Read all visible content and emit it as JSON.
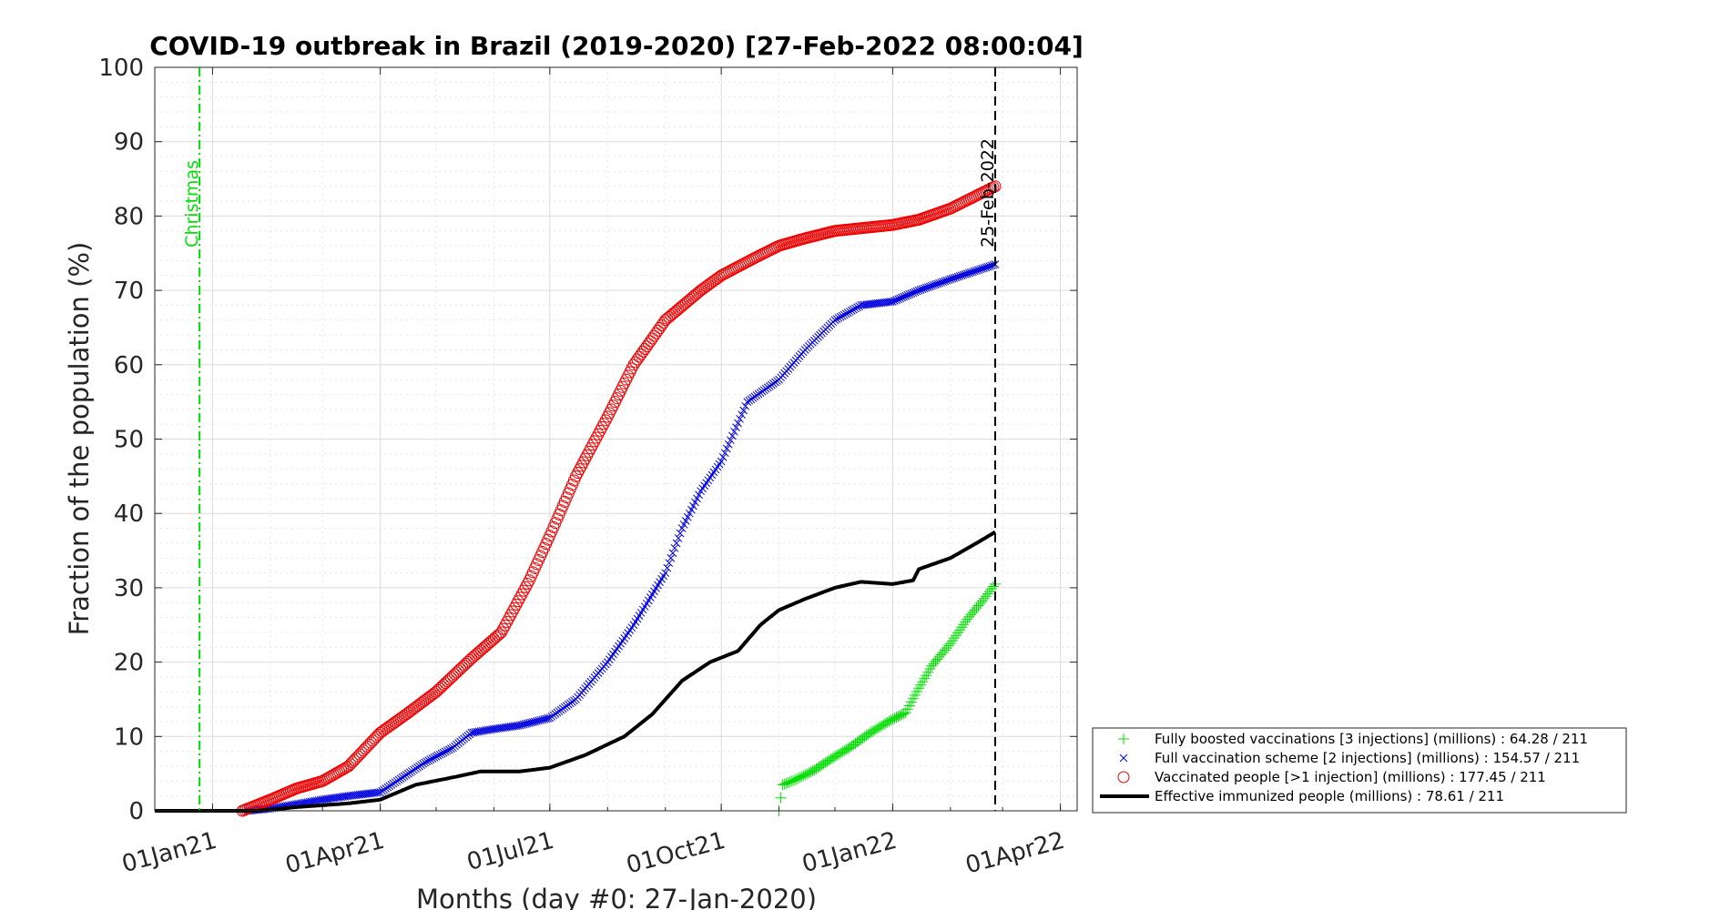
{
  "chart_data": {
    "type": "line",
    "title": "COVID-19 outbreak in Brazil (2019-2020) [27-Feb-2022 08:00:04]",
    "xlabel": "Months (day #0: 27-Jan-2020)",
    "ylabel": "Fraction of the population (%)",
    "x_start_date": "2020-12-01",
    "xlim": [
      "2020-12-01",
      "2022-04-10"
    ],
    "ylim": [
      0,
      100
    ],
    "yticks": [
      0,
      10,
      20,
      30,
      40,
      50,
      60,
      70,
      80,
      90,
      100
    ],
    "xticks": [
      {
        "date": "2021-01-01",
        "label": "01Jan21"
      },
      {
        "date": "2021-04-01",
        "label": "01Apr21"
      },
      {
        "date": "2021-07-01",
        "label": "01Jul21"
      },
      {
        "date": "2021-10-01",
        "label": "01Oct21"
      },
      {
        "date": "2022-01-01",
        "label": "01Jan22"
      },
      {
        "date": "2022-04-01",
        "label": "01Apr22"
      }
    ],
    "grid": true,
    "legend_position": "outside-bottom-right",
    "annotations": [
      {
        "date": "2020-12-25",
        "label": "Christmas",
        "color": "#00e000",
        "style": "dash-dot"
      },
      {
        "date": "2022-02-25",
        "label": "25-Feb-2022",
        "color": "#000000",
        "style": "dashed"
      }
    ],
    "series": [
      {
        "name": "Fully boosted vaccinations [3 injections] (millions) : 64.28 / 211",
        "marker": "plus",
        "color": "#00dd00",
        "points": [
          [
            "2021-11-01",
            0
          ],
          [
            "2021-11-03",
            3.5
          ],
          [
            "2021-11-10",
            4.2
          ],
          [
            "2021-11-20",
            5.5
          ],
          [
            "2021-12-01",
            7.3
          ],
          [
            "2021-12-10",
            8.7
          ],
          [
            "2021-12-20",
            10.5
          ],
          [
            "2021-12-31",
            12.2
          ],
          [
            "2022-01-08",
            13.2
          ],
          [
            "2022-01-15",
            16.5
          ],
          [
            "2022-01-22",
            19.5
          ],
          [
            "2022-02-01",
            22.5
          ],
          [
            "2022-02-10",
            25.8
          ],
          [
            "2022-02-18",
            28.2
          ],
          [
            "2022-02-25",
            30.5
          ]
        ]
      },
      {
        "name": "Full vaccination scheme [2 injections] (millions) : 154.57 / 211",
        "marker": "x",
        "color": "#0000dd",
        "points": [
          [
            "2021-01-20",
            0
          ],
          [
            "2021-02-01",
            0.3
          ],
          [
            "2021-02-15",
            0.9
          ],
          [
            "2021-03-01",
            1.5
          ],
          [
            "2021-03-15",
            2.0
          ],
          [
            "2021-04-01",
            2.5
          ],
          [
            "2021-04-10",
            4.0
          ],
          [
            "2021-04-25",
            6.5
          ],
          [
            "2021-05-10",
            8.5
          ],
          [
            "2021-05-20",
            10.5
          ],
          [
            "2021-06-01",
            11.0
          ],
          [
            "2021-06-15",
            11.5
          ],
          [
            "2021-07-01",
            12.5
          ],
          [
            "2021-07-15",
            15.0
          ],
          [
            "2021-08-01",
            20.0
          ],
          [
            "2021-08-15",
            25.0
          ],
          [
            "2021-09-01",
            32.0
          ],
          [
            "2021-09-10",
            38.0
          ],
          [
            "2021-09-20",
            43.0
          ],
          [
            "2021-10-01",
            47.0
          ],
          [
            "2021-10-15",
            55.0
          ],
          [
            "2021-11-01",
            58.0
          ],
          [
            "2021-11-15",
            62.0
          ],
          [
            "2021-12-01",
            66.0
          ],
          [
            "2021-12-15",
            68.0
          ],
          [
            "2022-01-01",
            68.5
          ],
          [
            "2022-01-15",
            70.0
          ],
          [
            "2022-02-01",
            71.5
          ],
          [
            "2022-02-25",
            73.5
          ]
        ]
      },
      {
        "name": "Vaccinated people [>1 injection] (millions) : 177.45 / 211",
        "marker": "circle",
        "color": "#ee0000",
        "points": [
          [
            "2021-01-17",
            0
          ],
          [
            "2021-02-01",
            1.5
          ],
          [
            "2021-02-15",
            3.0
          ],
          [
            "2021-03-01",
            4.0
          ],
          [
            "2021-03-15",
            6.0
          ],
          [
            "2021-04-01",
            10.5
          ],
          [
            "2021-04-15",
            13.0
          ],
          [
            "2021-05-01",
            16.0
          ],
          [
            "2021-05-20",
            20.5
          ],
          [
            "2021-06-05",
            24.0
          ],
          [
            "2021-06-20",
            31.0
          ],
          [
            "2021-07-01",
            37.0
          ],
          [
            "2021-07-15",
            45.0
          ],
          [
            "2021-08-01",
            53.0
          ],
          [
            "2021-08-15",
            60.0
          ],
          [
            "2021-09-01",
            66.0
          ],
          [
            "2021-09-20",
            70.0
          ],
          [
            "2021-10-01",
            72.0
          ],
          [
            "2021-10-20",
            74.5
          ],
          [
            "2021-11-01",
            76.0
          ],
          [
            "2021-11-15",
            77.0
          ],
          [
            "2021-12-01",
            78.0
          ],
          [
            "2022-01-01",
            78.8
          ],
          [
            "2022-01-15",
            79.5
          ],
          [
            "2022-02-01",
            81.0
          ],
          [
            "2022-02-25",
            84.0
          ]
        ]
      },
      {
        "name": "Effective immunized people (millions) : 78.61 / 211",
        "marker": "line",
        "color": "#000000",
        "points": [
          [
            "2020-12-01",
            0
          ],
          [
            "2021-01-25",
            0
          ],
          [
            "2021-02-15",
            0.5
          ],
          [
            "2021-03-15",
            1.0
          ],
          [
            "2021-04-01",
            1.5
          ],
          [
            "2021-04-20",
            3.5
          ],
          [
            "2021-05-10",
            4.5
          ],
          [
            "2021-05-25",
            5.3
          ],
          [
            "2021-06-15",
            5.3
          ],
          [
            "2021-07-01",
            5.8
          ],
          [
            "2021-07-20",
            7.5
          ],
          [
            "2021-08-10",
            10.0
          ],
          [
            "2021-08-25",
            13.0
          ],
          [
            "2021-09-10",
            17.5
          ],
          [
            "2021-09-25",
            20.0
          ],
          [
            "2021-10-10",
            21.5
          ],
          [
            "2021-10-22",
            25.0
          ],
          [
            "2021-11-01",
            27.0
          ],
          [
            "2021-11-15",
            28.5
          ],
          [
            "2021-12-01",
            30.0
          ],
          [
            "2021-12-15",
            30.8
          ],
          [
            "2022-01-01",
            30.5
          ],
          [
            "2022-01-12",
            31.0
          ],
          [
            "2022-01-15",
            32.5
          ],
          [
            "2022-02-01",
            34.0
          ],
          [
            "2022-02-15",
            36.0
          ],
          [
            "2022-02-25",
            37.5
          ]
        ]
      }
    ]
  }
}
